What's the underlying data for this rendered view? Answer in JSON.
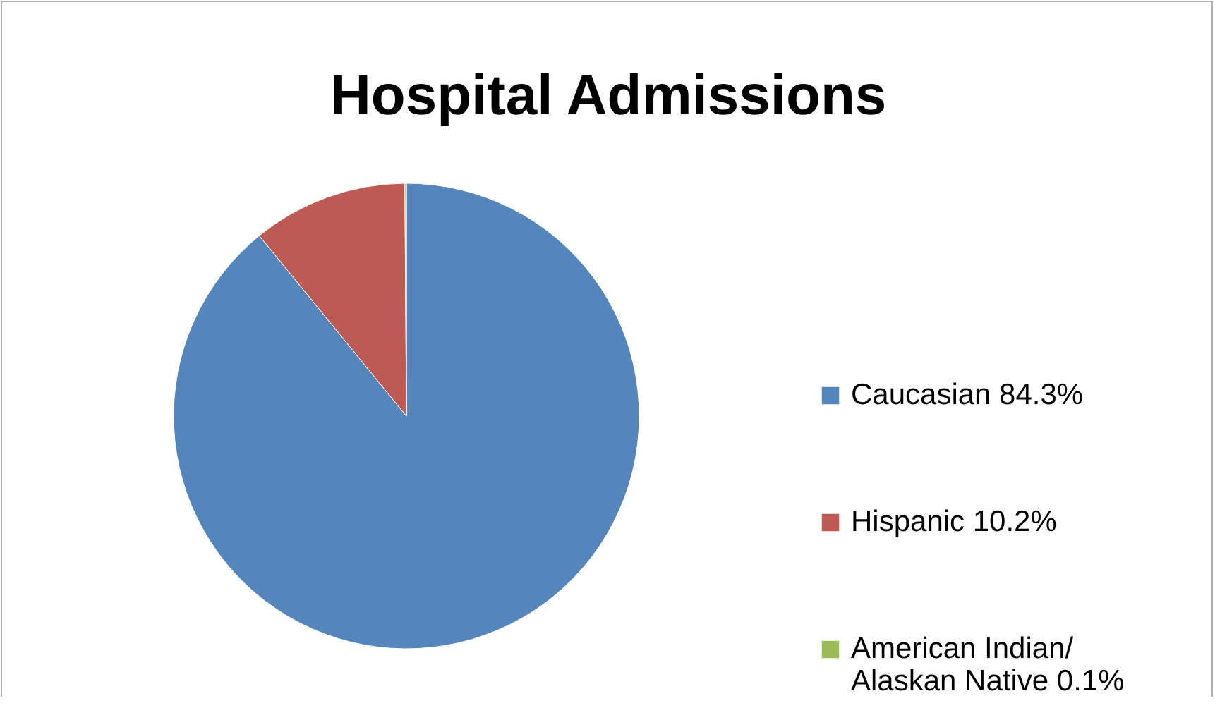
{
  "chart_data": {
    "type": "pie",
    "title": "Hospital Admissions",
    "categories": [
      "Caucasian 84.3%",
      "Hispanic 10.2%",
      "American Indian/ Alaskan Native 0.1%"
    ],
    "values": [
      84.3,
      10.2,
      0.1
    ],
    "colors": [
      "#5586bb",
      "#bd5a53",
      "#9bbb59"
    ],
    "legend": "right"
  }
}
